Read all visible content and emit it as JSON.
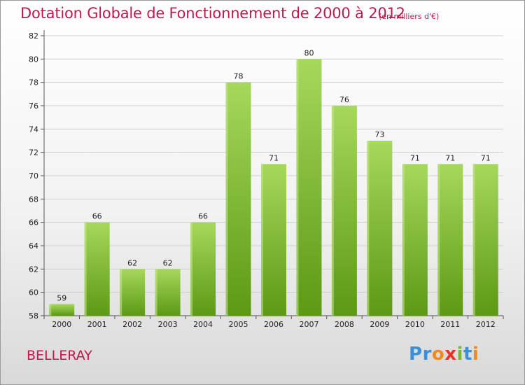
{
  "title": "Dotation Globale de Fonctionnement de 2000 à 2012",
  "unit_note": "(en milliers d'€)",
  "commune": "BELLERAY",
  "logo": {
    "text": "Proxiti",
    "letters": [
      {
        "ch": "P",
        "color": "#3b8fd6"
      },
      {
        "ch": "r",
        "color": "#3b8fd6"
      },
      {
        "ch": "o",
        "color": "#f08a1c"
      },
      {
        "ch": "x",
        "color": "#e6332a"
      },
      {
        "ch": "i",
        "color": "#7bb72f"
      },
      {
        "ch": "t",
        "color": "#3b8fd6"
      },
      {
        "ch": "i",
        "color": "#f08a1c"
      }
    ]
  },
  "colors": {
    "title": "#c4164b",
    "bar_light": "#a4d65a",
    "bar_dark": "#5f9a16",
    "grid": "#cfcfcf"
  },
  "chart_data": {
    "type": "bar",
    "title": "Dotation Globale de Fonctionnement de 2000 à 2012",
    "subtitle": "(en milliers d'€)",
    "xlabel": "",
    "ylabel": "",
    "categories": [
      "2000",
      "2001",
      "2002",
      "2003",
      "2004",
      "2005",
      "2006",
      "2007",
      "2008",
      "2009",
      "2010",
      "2011",
      "2012"
    ],
    "values": [
      59,
      66,
      62,
      62,
      66,
      78,
      71,
      80,
      76,
      73,
      71,
      71,
      71
    ],
    "ylim": [
      58,
      82
    ],
    "yticks": [
      58,
      60,
      62,
      64,
      66,
      68,
      70,
      72,
      74,
      76,
      78,
      80,
      82
    ],
    "grid": true,
    "legend": "none"
  }
}
